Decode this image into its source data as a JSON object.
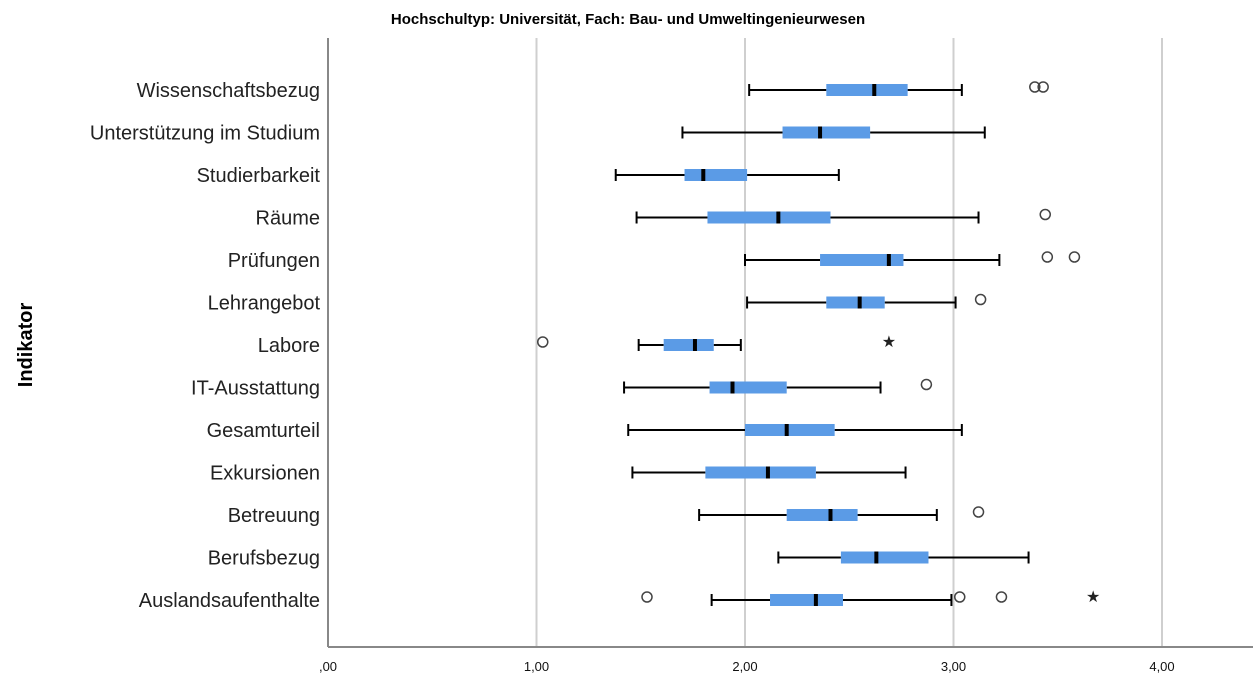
{
  "chart_data": {
    "type": "boxplot",
    "orientation": "horizontal",
    "title": "Hochschultyp: Universität, Fach: Bau- und Umweltingenieurwesen",
    "ylabel": "Indikator",
    "xlabel": "",
    "xlim": [
      0,
      4.4
    ],
    "x_ticks": [
      0,
      1,
      2,
      3,
      4
    ],
    "x_tick_labels": [
      ",00",
      "1,00",
      "2,00",
      "3,00",
      "4,00"
    ],
    "grid": "vertical",
    "colors": {
      "box": "#5b9be6",
      "grid": "#cfcfcf",
      "axis": "#888888"
    },
    "categories": [
      {
        "label": "Wissenschaftsbezug",
        "min": 2.02,
        "q1": 2.39,
        "median": 2.62,
        "q3": 2.78,
        "max": 3.04,
        "outliers": [
          3.39,
          3.43
        ],
        "extremes": []
      },
      {
        "label": "Unterstützung im Studium",
        "min": 1.7,
        "q1": 2.18,
        "median": 2.36,
        "q3": 2.6,
        "max": 3.15,
        "outliers": [],
        "extremes": []
      },
      {
        "label": "Studierbarkeit",
        "min": 1.38,
        "q1": 1.71,
        "median": 1.8,
        "q3": 2.01,
        "max": 2.45,
        "outliers": [],
        "extremes": []
      },
      {
        "label": "Räume",
        "min": 1.48,
        "q1": 1.82,
        "median": 2.16,
        "q3": 2.41,
        "max": 3.12,
        "outliers": [
          3.44
        ],
        "extremes": []
      },
      {
        "label": "Prüfungen",
        "min": 2.0,
        "q1": 2.36,
        "median": 2.69,
        "q3": 2.76,
        "max": 3.22,
        "outliers": [
          3.45,
          3.58
        ],
        "extremes": []
      },
      {
        "label": "Lehrangebot",
        "min": 2.01,
        "q1": 2.39,
        "median": 2.55,
        "q3": 2.67,
        "max": 3.01,
        "outliers": [
          3.13
        ],
        "extremes": []
      },
      {
        "label": "Labore",
        "min": 1.49,
        "q1": 1.61,
        "median": 1.76,
        "q3": 1.85,
        "max": 1.98,
        "outliers": [
          1.03
        ],
        "extremes": [
          2.69
        ]
      },
      {
        "label": "IT-Ausstattung",
        "min": 1.42,
        "q1": 1.83,
        "median": 1.94,
        "q3": 2.2,
        "max": 2.65,
        "outliers": [
          2.87
        ],
        "extremes": []
      },
      {
        "label": "Gesamturteil",
        "min": 1.44,
        "q1": 2.0,
        "median": 2.2,
        "q3": 2.43,
        "max": 3.04,
        "outliers": [],
        "extremes": []
      },
      {
        "label": "Exkursionen",
        "min": 1.46,
        "q1": 1.81,
        "median": 2.11,
        "q3": 2.34,
        "max": 2.77,
        "outliers": [],
        "extremes": []
      },
      {
        "label": "Betreuung",
        "min": 1.78,
        "q1": 2.2,
        "median": 2.41,
        "q3": 2.54,
        "max": 2.92,
        "outliers": [
          3.12
        ],
        "extremes": []
      },
      {
        "label": "Berufsbezug",
        "min": 2.16,
        "q1": 2.46,
        "median": 2.63,
        "q3": 2.88,
        "max": 3.36,
        "outliers": [],
        "extremes": []
      },
      {
        "label": "Auslandsaufenthalte",
        "min": 1.84,
        "q1": 2.12,
        "median": 2.34,
        "q3": 2.47,
        "max": 2.99,
        "outliers": [
          1.53,
          3.03,
          3.23
        ],
        "extremes": [
          3.67
        ]
      }
    ]
  },
  "extreme_marker": "★"
}
